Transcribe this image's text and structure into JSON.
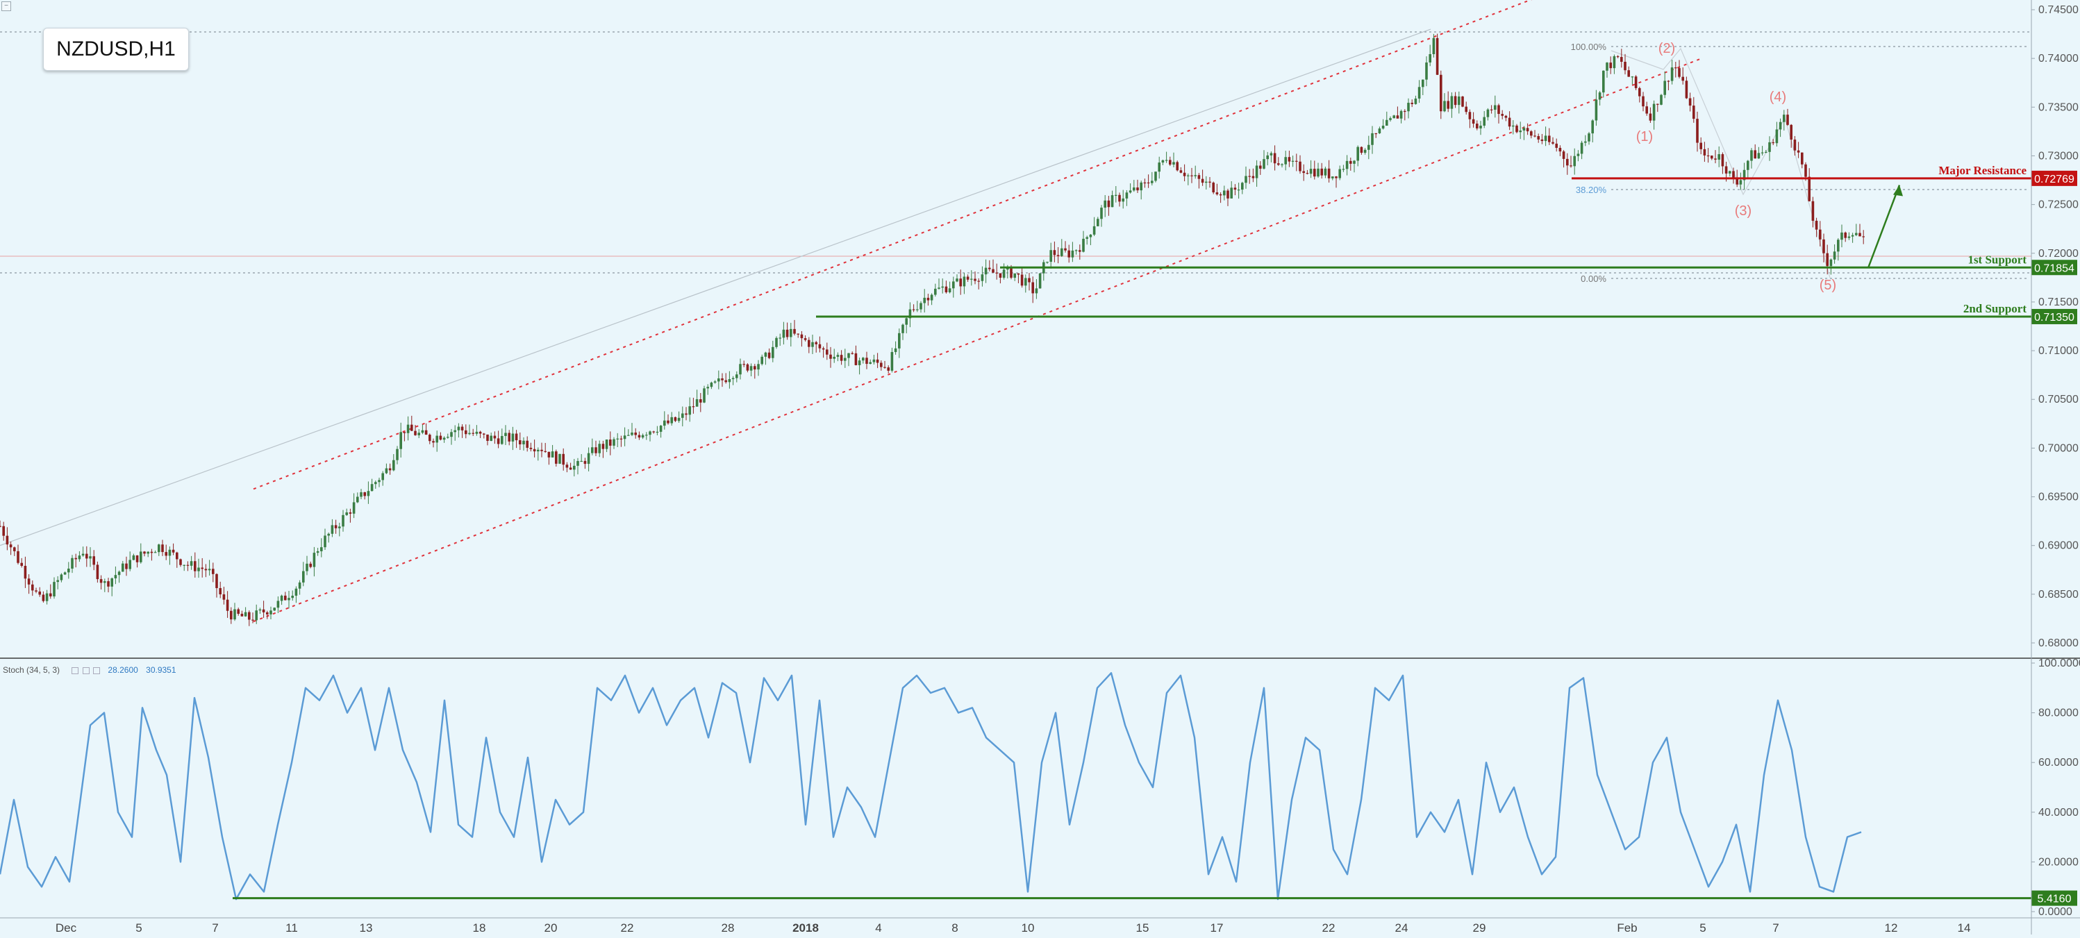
{
  "symbol": "NZDUSD,H1",
  "price_axis_labels": [
    "0.74500",
    "0.74000",
    "0.73500",
    "0.73000",
    "0.72500",
    "0.72000",
    "0.71500",
    "0.71000",
    "0.70500",
    "0.70000",
    "0.69500",
    "0.69000",
    "0.68500",
    "0.68000"
  ],
  "stoch_axis_labels": [
    "100.0000",
    "80.0000",
    "60.0000",
    "40.0000",
    "20.0000",
    "0.0000"
  ],
  "time_labels": [
    "Dec",
    "5",
    "7",
    "11",
    "13",
    "18",
    "20",
    "22",
    "28",
    "2018",
    "4",
    "8",
    "10",
    "15",
    "17",
    "22",
    "24",
    "29",
    "Feb",
    "5",
    "7",
    "12",
    "14"
  ],
  "levels": {
    "major_resistance": {
      "label": "Major Resistance",
      "value": "0.72769",
      "color": "#c41212"
    },
    "support_1": {
      "label": "1st Support",
      "value": "0.71854",
      "color": "#2e7d1e"
    },
    "support_2": {
      "label": "2nd Support",
      "value": "0.71350",
      "color": "#2e7d1e"
    },
    "stoch_level": {
      "value": "5.4160",
      "color": "#2e7d1e"
    }
  },
  "fib_labels": {
    "top": "100.00%",
    "mid": "38.20%",
    "bottom": "0.00%"
  },
  "wave_labels": [
    "(1)",
    "(2)",
    "(3)",
    "(4)",
    "(5)"
  ],
  "stoch": {
    "title": "Stoch (34, 5, 3)",
    "value1": "28.2600",
    "value2": "30.9351"
  },
  "colors": {
    "background": "#eaf6fb",
    "up_candle": "#3a7d44",
    "down_candle": "#8b1e1e",
    "stoch_line": "#5b9bd5",
    "channel": "#e0313a"
  },
  "chart_data": {
    "type": "candlestick",
    "instrument": "NZDUSD",
    "timeframe": "H1",
    "ylim": [
      0.6785,
      0.7455
    ],
    "close_path": [
      [
        0,
        0.692
      ],
      [
        30,
        0.688
      ],
      [
        60,
        0.684
      ],
      [
        90,
        0.687
      ],
      [
        120,
        0.6895
      ],
      [
        150,
        0.686
      ],
      [
        190,
        0.6885
      ],
      [
        230,
        0.69
      ],
      [
        270,
        0.688
      ],
      [
        300,
        0.6875
      ],
      [
        330,
        0.683
      ],
      [
        360,
        0.6825
      ],
      [
        400,
        0.684
      ],
      [
        430,
        0.686
      ],
      [
        460,
        0.69
      ],
      [
        490,
        0.6925
      ],
      [
        520,
        0.695
      ],
      [
        560,
        0.698
      ],
      [
        580,
        0.702
      ],
      [
        620,
        0.701
      ],
      [
        660,
        0.702
      ],
      [
        700,
        0.701
      ],
      [
        740,
        0.701
      ],
      [
        780,
        0.7
      ],
      [
        800,
        0.699
      ],
      [
        830,
        0.698
      ],
      [
        860,
        0.7
      ],
      [
        900,
        0.701
      ],
      [
        940,
        0.702
      ],
      [
        980,
        0.703
      ],
      [
        1020,
        0.706
      ],
      [
        1060,
        0.708
      ],
      [
        1100,
        0.709
      ],
      [
        1130,
        0.712
      ],
      [
        1160,
        0.711
      ],
      [
        1200,
        0.7095
      ],
      [
        1240,
        0.709
      ],
      [
        1280,
        0.7085
      ],
      [
        1310,
        0.714
      ],
      [
        1340,
        0.716
      ],
      [
        1380,
        0.717
      ],
      [
        1420,
        0.718
      ],
      [
        1460,
        0.718
      ],
      [
        1490,
        0.716
      ],
      [
        1510,
        0.72
      ],
      [
        1540,
        0.72
      ],
      [
        1560,
        0.721
      ],
      [
        1590,
        0.725
      ],
      [
        1620,
        0.726
      ],
      [
        1650,
        0.727
      ],
      [
        1680,
        0.73
      ],
      [
        1710,
        0.728
      ],
      [
        1740,
        0.727
      ],
      [
        1770,
        0.726
      ],
      [
        1800,
        0.728
      ],
      [
        1830,
        0.73
      ],
      [
        1860,
        0.729
      ],
      [
        1890,
        0.7285
      ],
      [
        1920,
        0.728
      ],
      [
        1950,
        0.73
      ],
      [
        1980,
        0.732
      ],
      [
        2010,
        0.734
      ],
      [
        2040,
        0.736
      ],
      [
        2065,
        0.742
      ],
      [
        2075,
        0.735
      ],
      [
        2100,
        0.736
      ],
      [
        2125,
        0.733
      ],
      [
        2150,
        0.735
      ],
      [
        2180,
        0.733
      ],
      [
        2210,
        0.732
      ],
      [
        2240,
        0.731
      ],
      [
        2262,
        0.729
      ],
      [
        2290,
        0.733
      ],
      [
        2310,
        0.739
      ],
      [
        2330,
        0.74
      ],
      [
        2355,
        0.737
      ],
      [
        2375,
        0.734
      ],
      [
        2395,
        0.737
      ],
      [
        2410,
        0.7395
      ],
      [
        2430,
        0.736
      ],
      [
        2450,
        0.73
      ],
      [
        2475,
        0.73
      ],
      [
        2500,
        0.727
      ],
      [
        2520,
        0.73
      ],
      [
        2545,
        0.7305
      ],
      [
        2560,
        0.733
      ],
      [
        2570,
        0.734
      ],
      [
        2595,
        0.729
      ],
      [
        2615,
        0.722
      ],
      [
        2632,
        0.719
      ],
      [
        2650,
        0.7215
      ],
      [
        2670,
        0.7225
      ],
      [
        2685,
        0.721
      ]
    ],
    "trendlines": {
      "channel_upper": [
        [
          365,
          0.6958
        ],
        [
          2240,
          0.747
        ]
      ],
      "channel_lower": [
        [
          365,
          0.6822
        ],
        [
          2450,
          0.74
        ]
      ],
      "long_trend": [
        [
          0,
          0.69
        ],
        [
          2060,
          0.743
        ]
      ]
    },
    "projection_arrow": [
      [
        2690,
        0.7185
      ],
      [
        2735,
        0.727
      ]
    ],
    "stoch_ylim": [
      0,
      100
    ],
    "stoch_series": [
      [
        0,
        15
      ],
      [
        20,
        45
      ],
      [
        40,
        18
      ],
      [
        60,
        10
      ],
      [
        80,
        22
      ],
      [
        100,
        12
      ],
      [
        130,
        75
      ],
      [
        150,
        80
      ],
      [
        170,
        40
      ],
      [
        190,
        30
      ],
      [
        205,
        82
      ],
      [
        225,
        65
      ],
      [
        240,
        55
      ],
      [
        260,
        20
      ],
      [
        280,
        86
      ],
      [
        300,
        62
      ],
      [
        320,
        30
      ],
      [
        340,
        5
      ],
      [
        360,
        15
      ],
      [
        380,
        8
      ],
      [
        400,
        35
      ],
      [
        420,
        60
      ],
      [
        440,
        90
      ],
      [
        460,
        85
      ],
      [
        480,
        95
      ],
      [
        500,
        80
      ],
      [
        520,
        90
      ],
      [
        540,
        65
      ],
      [
        560,
        90
      ],
      [
        580,
        65
      ],
      [
        600,
        52
      ],
      [
        620,
        32
      ],
      [
        640,
        85
      ],
      [
        660,
        35
      ],
      [
        680,
        30
      ],
      [
        700,
        70
      ],
      [
        720,
        40
      ],
      [
        740,
        30
      ],
      [
        760,
        62
      ],
      [
        780,
        20
      ],
      [
        800,
        45
      ],
      [
        820,
        35
      ],
      [
        840,
        40
      ],
      [
        860,
        90
      ],
      [
        880,
        85
      ],
      [
        900,
        95
      ],
      [
        920,
        80
      ],
      [
        940,
        90
      ],
      [
        960,
        75
      ],
      [
        980,
        85
      ],
      [
        1000,
        90
      ],
      [
        1020,
        70
      ],
      [
        1040,
        92
      ],
      [
        1060,
        88
      ],
      [
        1080,
        60
      ],
      [
        1100,
        94
      ],
      [
        1120,
        85
      ],
      [
        1140,
        95
      ],
      [
        1160,
        35
      ],
      [
        1180,
        85
      ],
      [
        1200,
        30
      ],
      [
        1220,
        50
      ],
      [
        1240,
        42
      ],
      [
        1260,
        30
      ],
      [
        1280,
        60
      ],
      [
        1300,
        90
      ],
      [
        1320,
        95
      ],
      [
        1340,
        88
      ],
      [
        1360,
        90
      ],
      [
        1380,
        80
      ],
      [
        1400,
        82
      ],
      [
        1420,
        70
      ],
      [
        1440,
        65
      ],
      [
        1460,
        60
      ],
      [
        1480,
        8
      ],
      [
        1500,
        60
      ],
      [
        1520,
        80
      ],
      [
        1540,
        35
      ],
      [
        1560,
        60
      ],
      [
        1580,
        90
      ],
      [
        1600,
        96
      ],
      [
        1620,
        75
      ],
      [
        1640,
        60
      ],
      [
        1660,
        50
      ],
      [
        1680,
        88
      ],
      [
        1700,
        95
      ],
      [
        1720,
        70
      ],
      [
        1740,
        15
      ],
      [
        1760,
        30
      ],
      [
        1780,
        12
      ],
      [
        1800,
        60
      ],
      [
        1820,
        90
      ],
      [
        1840,
        5
      ],
      [
        1860,
        45
      ],
      [
        1880,
        70
      ],
      [
        1900,
        65
      ],
      [
        1920,
        25
      ],
      [
        1940,
        15
      ],
      [
        1960,
        45
      ],
      [
        1980,
        90
      ],
      [
        2000,
        85
      ],
      [
        2020,
        95
      ],
      [
        2040,
        30
      ],
      [
        2060,
        40
      ],
      [
        2080,
        32
      ],
      [
        2100,
        45
      ],
      [
        2120,
        15
      ],
      [
        2140,
        60
      ],
      [
        2160,
        40
      ],
      [
        2180,
        50
      ],
      [
        2200,
        30
      ],
      [
        2220,
        15
      ],
      [
        2240,
        22
      ],
      [
        2260,
        90
      ],
      [
        2280,
        94
      ],
      [
        2300,
        55
      ],
      [
        2320,
        40
      ],
      [
        2340,
        25
      ],
      [
        2360,
        30
      ],
      [
        2380,
        60
      ],
      [
        2400,
        70
      ],
      [
        2420,
        40
      ],
      [
        2440,
        25
      ],
      [
        2460,
        10
      ],
      [
        2480,
        20
      ],
      [
        2500,
        35
      ],
      [
        2520,
        8
      ],
      [
        2540,
        55
      ],
      [
        2560,
        85
      ],
      [
        2580,
        65
      ],
      [
        2600,
        30
      ],
      [
        2620,
        10
      ],
      [
        2640,
        8
      ],
      [
        2660,
        30
      ],
      [
        2680,
        32
      ]
    ],
    "stoch_level_line": 5.416
  }
}
